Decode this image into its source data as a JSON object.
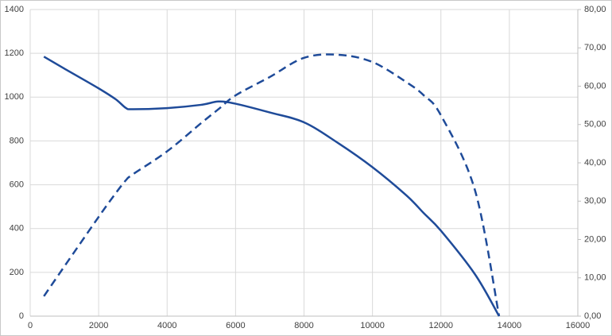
{
  "chart_data": {
    "type": "line",
    "x": [
      400,
      1000,
      2000,
      2500,
      2800,
      3000,
      4000,
      5000,
      5500,
      6000,
      7000,
      8000,
      9000,
      10000,
      11000,
      11500,
      12000,
      13000,
      13700
    ],
    "series": [
      {
        "color": "#1f4b99",
        "style": "solid",
        "axis": "y",
        "values": [
          1185,
          1130,
          1040,
          990,
          950,
          945,
          950,
          965,
          980,
          970,
          930,
          885,
          790,
          680,
          550,
          470,
          390,
          190,
          0
        ]
      },
      {
        "color": "#1f4b99",
        "style": "dashed",
        "axis": "y2",
        "values": [
          5.2,
          13,
          25.9,
          32.1,
          35.5,
          37,
          43,
          50.4,
          54,
          57.6,
          62.4,
          67.4,
          68.2,
          66.3,
          61,
          57.6,
          52.4,
          32.7,
          0
        ]
      }
    ],
    "xlim": [
      0,
      16000
    ],
    "xticks": [
      0,
      2000,
      4000,
      6000,
      8000,
      10000,
      12000,
      14000,
      16000
    ],
    "ylim": [
      0,
      1400
    ],
    "yticks": [
      0,
      200,
      400,
      600,
      800,
      1000,
      1200,
      1400
    ],
    "y2lim": [
      0,
      80
    ],
    "y2ticks": [
      {
        "value": 0,
        "label": "0,00"
      },
      {
        "value": 10,
        "label": "10,00"
      },
      {
        "value": 20,
        "label": "20,00"
      },
      {
        "value": 30,
        "label": "30,00"
      },
      {
        "value": 40,
        "label": "40,00"
      },
      {
        "value": 50,
        "label": "50,00"
      },
      {
        "value": 60,
        "label": "60,00"
      },
      {
        "value": 70,
        "label": "70,00"
      },
      {
        "value": 80,
        "label": "80,00"
      }
    ],
    "grid": true
  }
}
